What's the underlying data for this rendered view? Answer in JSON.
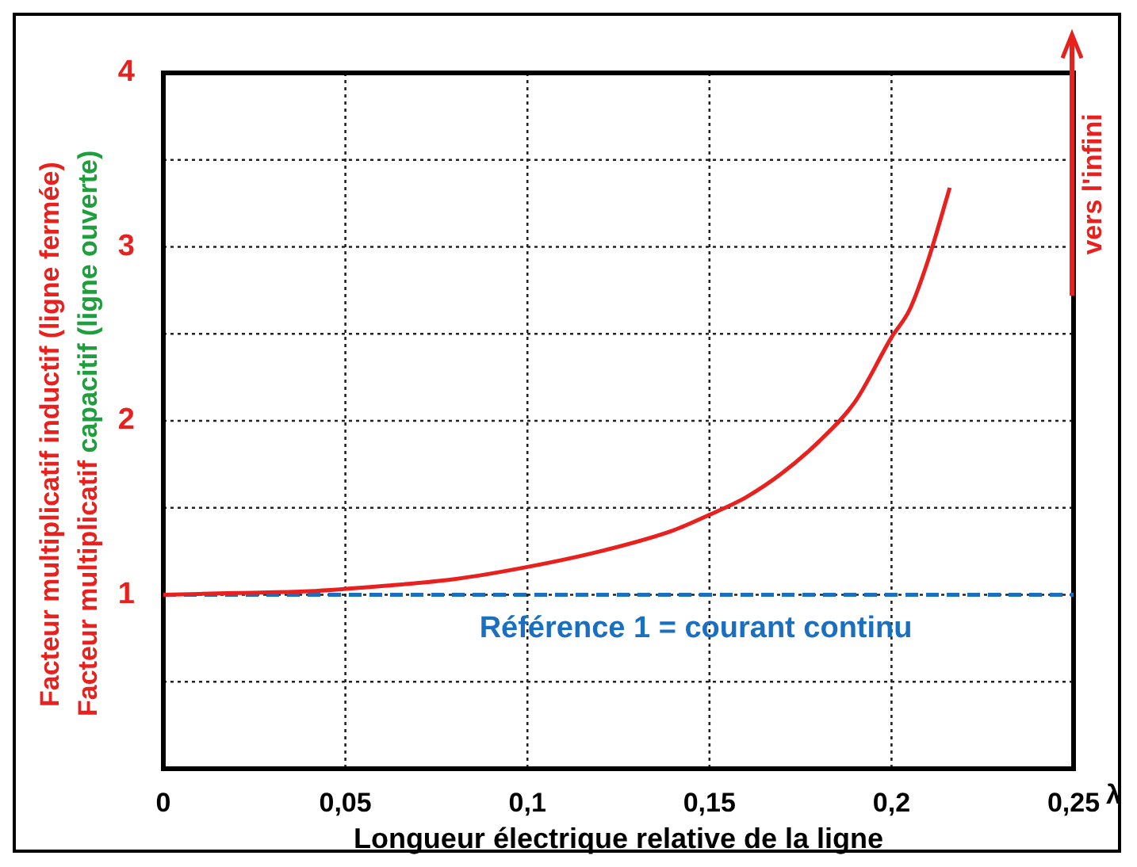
{
  "chart_data": {
    "type": "line",
    "xlabel": "Longueur électrique relative de la ligne",
    "ylabel": "Facteur multiplicatif inductif (ligne fermée)\nFacteur multiplicatif capacitif (ligne ouverte)",
    "x": [
      0,
      0.02,
      0.04,
      0.06,
      0.08,
      0.1,
      0.12,
      0.14,
      0.15,
      0.16,
      0.17,
      0.18,
      0.19,
      0.2,
      0.205,
      0.21,
      0.216
    ],
    "series": [
      {
        "color": "#e8201e",
        "values": [
          1,
          1.01,
          1.02,
          1.05,
          1.09,
          1.16,
          1.25,
          1.37,
          1.46,
          1.56,
          1.7,
          1.88,
          2.11,
          2.48,
          2.64,
          2.92,
          3.34
        ]
      }
    ],
    "xlim": [
      0,
      0.25
    ],
    "ylim": [
      0,
      4
    ],
    "xticks": [
      0,
      {
        "value": 0.05,
        "label": "0,05"
      },
      {
        "value": 0.1,
        "label": "0,1"
      },
      {
        "value": 0.15,
        "label": "0,15"
      },
      {
        "value": 0.2,
        "label": "0,2"
      },
      {
        "value": 0.25,
        "label": "0,25"
      }
    ],
    "yticks": [
      {
        "value": 0,
        "label": null
      },
      {
        "value": 0.5,
        "label": null
      },
      1,
      {
        "value": 1.5,
        "label": null
      },
      2,
      {
        "value": 2.5,
        "label": null
      },
      3,
      {
        "value": 3.5,
        "label": null
      },
      4
    ],
    "grid": true,
    "marker": "none",
    "line_style": "solid",
    "ref_lines": [
      {
        "axis": "y",
        "value": 1,
        "label": "Référence 1 = courant continu",
        "color": "#1a6fc0",
        "line_style": "dashed"
      }
    ],
    "annotations": [
      "vers l'infini",
      "λ"
    ]
  }
}
